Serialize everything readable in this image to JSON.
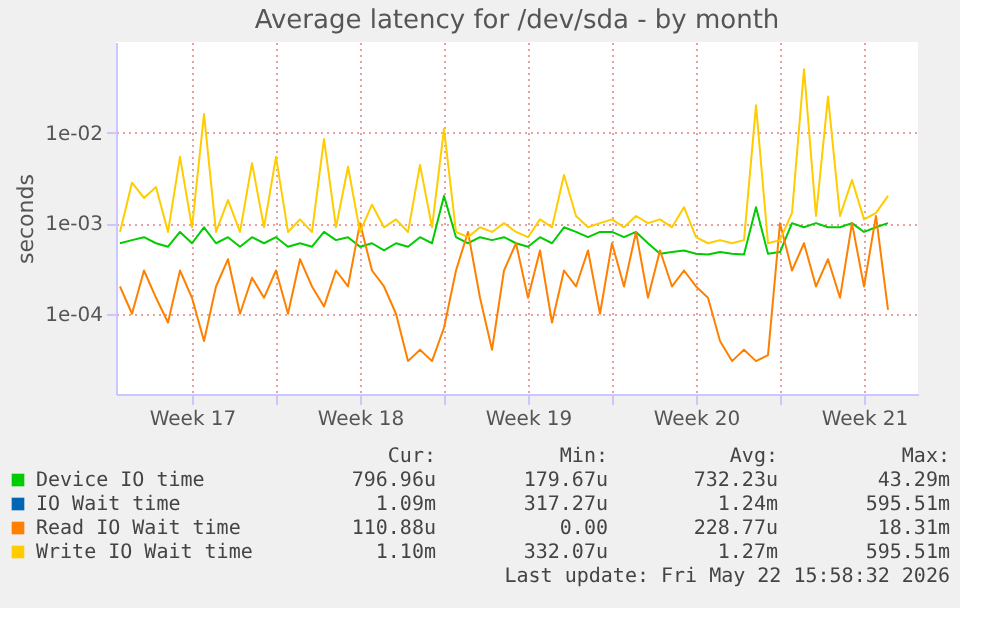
{
  "chart_data": {
    "type": "line",
    "title": "Average latency for /dev/sda - by month",
    "ylabel": "seconds",
    "x": [
      "2026-04-20T12:00",
      "2026-04-21T00:00",
      "2026-04-21T12:00",
      "2026-04-22T00:00",
      "2026-04-22T12:00",
      "2026-04-23T00:00",
      "2026-04-23T12:00",
      "2026-04-24T00:00",
      "2026-04-24T12:00",
      "2026-04-25T00:00",
      "2026-04-25T12:00",
      "2026-04-26T00:00",
      "2026-04-26T12:00",
      "2026-04-27T00:00",
      "2026-04-27T12:00",
      "2026-04-28T00:00",
      "2026-04-28T12:00",
      "2026-04-29T00:00",
      "2026-04-29T12:00",
      "2026-04-30T00:00",
      "2026-04-30T12:00",
      "2026-05-01T00:00",
      "2026-05-01T12:00",
      "2026-05-02T00:00",
      "2026-05-02T12:00",
      "2026-05-03T00:00",
      "2026-05-03T12:00",
      "2026-05-04T00:00",
      "2026-05-04T12:00",
      "2026-05-05T00:00",
      "2026-05-05T12:00",
      "2026-05-06T00:00",
      "2026-05-06T12:00",
      "2026-05-07T00:00",
      "2026-05-07T12:00",
      "2026-05-08T00:00",
      "2026-05-08T12:00",
      "2026-05-09T00:00",
      "2026-05-09T12:00",
      "2026-05-10T00:00",
      "2026-05-10T12:00",
      "2026-05-11T00:00",
      "2026-05-11T12:00",
      "2026-05-12T00:00",
      "2026-05-12T12:00",
      "2026-05-13T00:00",
      "2026-05-13T12:00",
      "2026-05-14T00:00",
      "2026-05-14T12:00",
      "2026-05-15T00:00",
      "2026-05-15T12:00",
      "2026-05-16T00:00",
      "2026-05-16T12:00",
      "2026-05-17T00:00",
      "2026-05-17T12:00",
      "2026-05-18T00:00",
      "2026-05-18T12:00",
      "2026-05-19T00:00",
      "2026-05-19T12:00",
      "2026-05-20T00:00",
      "2026-05-20T12:00",
      "2026-05-21T00:00",
      "2026-05-21T12:00",
      "2026-05-22T00:00",
      "2026-05-22T12:00"
    ],
    "series": [
      {
        "name": "Device IO time",
        "color": "#00cc00",
        "values": [
          0.0006,
          0.00065,
          0.0007,
          0.0006,
          0.00055,
          0.0008,
          0.0006,
          0.0009,
          0.0006,
          0.0007,
          0.00055,
          0.0007,
          0.0006,
          0.0007,
          0.00055,
          0.0006,
          0.00055,
          0.0008,
          0.00065,
          0.0007,
          0.00055,
          0.0006,
          0.0005,
          0.0006,
          0.00055,
          0.0007,
          0.0006,
          0.002,
          0.0007,
          0.0006,
          0.0007,
          0.00065,
          0.0007,
          0.0006,
          0.00055,
          0.0007,
          0.0006,
          0.0009,
          0.0008,
          0.0007,
          0.0008,
          0.0008,
          0.0007,
          0.0008,
          0.0006,
          0.00046,
          0.00048,
          0.0005,
          0.00046,
          0.00045,
          0.00048,
          0.00046,
          0.00045,
          0.0015,
          0.00046,
          0.00048,
          0.001,
          0.0009,
          0.001,
          0.0009,
          0.0009,
          0.001,
          0.0008,
          0.0009,
          0.001
        ]
      },
      {
        "name": "IO Wait time",
        "color": "#0066b3",
        "values": [
          null,
          null,
          null,
          null,
          null,
          null,
          null,
          null,
          null,
          null,
          null,
          null,
          null,
          null,
          null,
          null,
          null,
          null,
          null,
          null,
          null,
          null,
          null,
          null,
          null,
          null,
          null,
          null,
          null,
          null,
          null,
          null,
          null,
          null,
          null,
          null,
          null,
          null,
          null,
          null,
          null,
          null,
          null,
          null,
          null,
          null,
          null,
          null,
          null,
          null,
          null,
          null,
          null,
          null,
          null,
          null,
          null,
          null,
          null,
          null,
          null,
          null,
          null,
          null,
          null
        ]
      },
      {
        "name": "Read IO Wait time",
        "color": "#ff8000",
        "values": [
          0.0002,
          0.0001,
          0.0003,
          0.00015,
          8e-05,
          0.0003,
          0.00015,
          5e-05,
          0.0002,
          0.0004,
          0.0001,
          0.00025,
          0.00015,
          0.0003,
          0.0001,
          0.0004,
          0.0002,
          0.00012,
          0.0003,
          0.0002,
          0.001,
          0.0003,
          0.0002,
          0.0001,
          3e-05,
          4e-05,
          3e-05,
          7e-05,
          0.0003,
          0.0008,
          0.00015,
          4e-05,
          0.0003,
          0.0006,
          0.00015,
          0.0005,
          8e-05,
          0.0003,
          0.0002,
          0.0005,
          0.0001,
          0.0006,
          0.0002,
          0.0008,
          0.00015,
          0.0005,
          0.0002,
          0.0003,
          0.0002,
          0.00015,
          5e-05,
          3e-05,
          4e-05,
          3e-05,
          3.5e-05,
          0.001,
          0.0003,
          0.0006,
          0.0002,
          0.0004,
          0.00015,
          0.001,
          0.0002,
          0.0012,
          0.00011
        ]
      },
      {
        "name": "Write IO Wait time",
        "color": "#ffcc00",
        "values": [
          0.0008,
          0.0028,
          0.0019,
          0.0025,
          0.0008,
          0.0054,
          0.0009,
          0.016,
          0.0008,
          0.0018,
          0.0008,
          0.0046,
          0.0009,
          0.0054,
          0.0008,
          0.0011,
          0.0008,
          0.0085,
          0.0009,
          0.0042,
          0.0008,
          0.0016,
          0.0009,
          0.0011,
          0.0008,
          0.0044,
          0.0009,
          0.011,
          0.0008,
          0.0007,
          0.0009,
          0.0008,
          0.001,
          0.0008,
          0.0007,
          0.0011,
          0.0009,
          0.0034,
          0.0012,
          0.0009,
          0.001,
          0.0011,
          0.0009,
          0.0012,
          0.001,
          0.0011,
          0.0009,
          0.0015,
          0.0007,
          0.0006,
          0.00065,
          0.0006,
          0.00065,
          0.02,
          0.0006,
          0.00065,
          0.0013,
          0.05,
          0.0012,
          0.025,
          0.0012,
          0.003,
          0.0011,
          0.0013,
          0.002
        ]
      }
    ],
    "xlim": [
      "2026-04-20T08:00",
      "2026-05-23T18:00"
    ],
    "xticks": [
      {
        "value": "2026-04-23T12:00",
        "label": "Week 17"
      },
      {
        "value": "2026-04-27T00:00",
        "label": null
      },
      {
        "value": "2026-04-30T12:00",
        "label": "Week 18"
      },
      {
        "value": "2026-05-04T00:00",
        "label": null
      },
      {
        "value": "2026-05-07T12:00",
        "label": "Week 19"
      },
      {
        "value": "2026-05-11T00:00",
        "label": null
      },
      {
        "value": "2026-05-14T12:00",
        "label": "Week 20"
      },
      {
        "value": "2026-05-18T00:00",
        "label": null
      },
      {
        "value": "2026-05-21T12:00",
        "label": "Week 21"
      }
    ],
    "ylim": [
      1.3e-05,
      0.1
    ],
    "log": true,
    "yticks": [
      {
        "value": 0.0001,
        "label": "1e-04"
      },
      {
        "value": 0.001,
        "label": "1e-03"
      },
      {
        "value": 0.01,
        "label": "1e-02"
      }
    ],
    "grid": true,
    "legend": "bottom",
    "annotations": [
      "Cur:",
      "Min:",
      "Avg:",
      "Max:",
      "796.96u",
      "179.67u",
      "732.23u",
      "43.29m",
      "1.09m",
      "317.27u",
      "1.24m",
      "595.51m",
      "110.88u",
      "0.00",
      "228.77u",
      "18.31m",
      "1.10m",
      "332.07u",
      "1.27m",
      "595.51m",
      "Last update: Fri May 22 15:58:32 2026"
    ]
  }
}
